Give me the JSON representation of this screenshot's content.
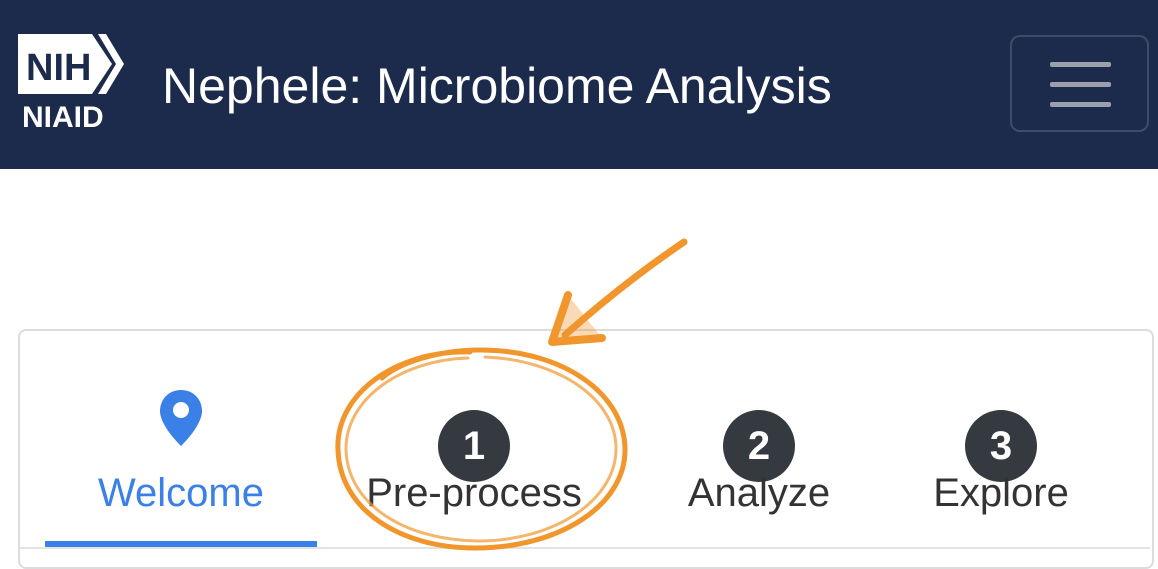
{
  "header": {
    "logo_top": "NIH",
    "logo_bottom": "NIAID",
    "title": "Nephele: Microbiome Analysis"
  },
  "steps": [
    {
      "label": "Welcome",
      "icon": "map-pin-icon",
      "active": true
    },
    {
      "label": "Pre-process",
      "badge": "1"
    },
    {
      "label": "Analyze",
      "badge": "2"
    },
    {
      "label": "Explore",
      "badge": "3"
    }
  ],
  "colors": {
    "navbar": "#1c2b4b",
    "active": "#3a80e6",
    "badge": "#343a40",
    "annotation": "#f0962d"
  }
}
